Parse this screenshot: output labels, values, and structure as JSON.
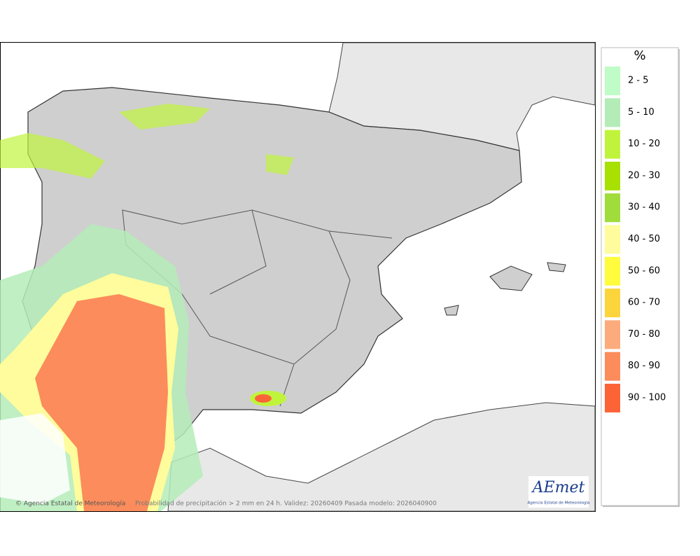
{
  "map": {
    "footer": {
      "credit": "© Agencia Estatal de Meteorología",
      "description": "Probabilidad de precipitación > 2 mm en 24 h. Validez: 20260409 Pasada modelo: 2026040900"
    },
    "logo": {
      "name": "AEmet",
      "subtitle": "Agencia Estatal de Meteorología"
    }
  },
  "legend": {
    "title": "%",
    "items": [
      {
        "label": "2 - 5",
        "color": "#c0fcc8"
      },
      {
        "label": "5 - 10",
        "color": "#b4ecb8"
      },
      {
        "label": "10 - 20",
        "color": "#c0f43c"
      },
      {
        "label": "20 - 30",
        "color": "#a8e000"
      },
      {
        "label": "30 - 40",
        "color": "#a0dc3c"
      },
      {
        "label": "40 - 50",
        "color": "#fefc9c"
      },
      {
        "label": "50 - 60",
        "color": "#fefc3c"
      },
      {
        "label": "60 - 70",
        "color": "#fcd43c"
      },
      {
        "label": "70 - 80",
        "color": "#fcac7c"
      },
      {
        "label": "80 - 90",
        "color": "#fc8c5c"
      },
      {
        "label": "90 - 100",
        "color": "#fc6438"
      }
    ]
  }
}
